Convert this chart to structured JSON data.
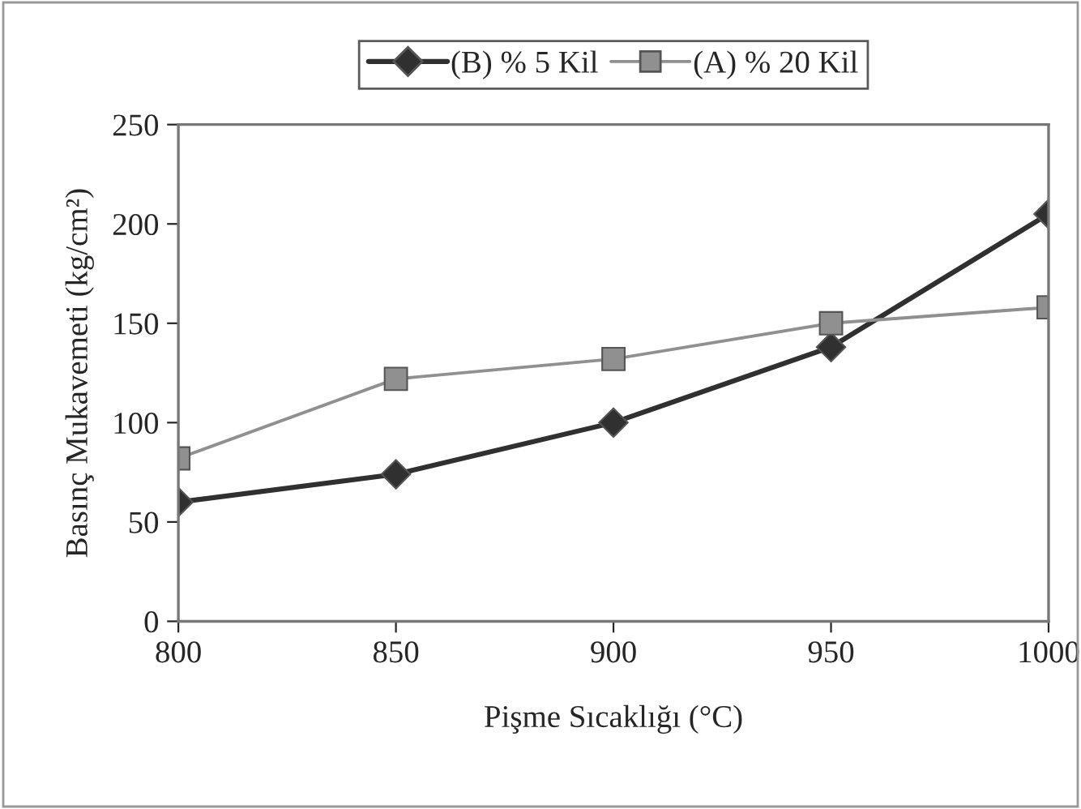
{
  "chart_data": {
    "type": "line",
    "xlabel": "Pişme Sıcaklığı (°C)",
    "ylabel": "Basınç Mukavemeti (kg/cm²)",
    "x": [
      800,
      850,
      900,
      950,
      1000
    ],
    "series": [
      {
        "name": "(B) % 5 Kil",
        "color": "#303030",
        "marker": "diamond",
        "values": [
          60,
          74,
          100,
          138,
          205
        ]
      },
      {
        "name": "(A) % 20 Kil",
        "color": "#909090",
        "marker": "square",
        "values": [
          82,
          122,
          132,
          150,
          158
        ]
      }
    ],
    "xlim": [
      800,
      1000
    ],
    "xticks": [
      800,
      850,
      900,
      950,
      1000
    ],
    "ylim": [
      0,
      250
    ],
    "yticks": [
      0,
      50,
      100,
      150,
      200,
      250
    ],
    "grid": false,
    "legend": "top",
    "line_style": "solid"
  }
}
